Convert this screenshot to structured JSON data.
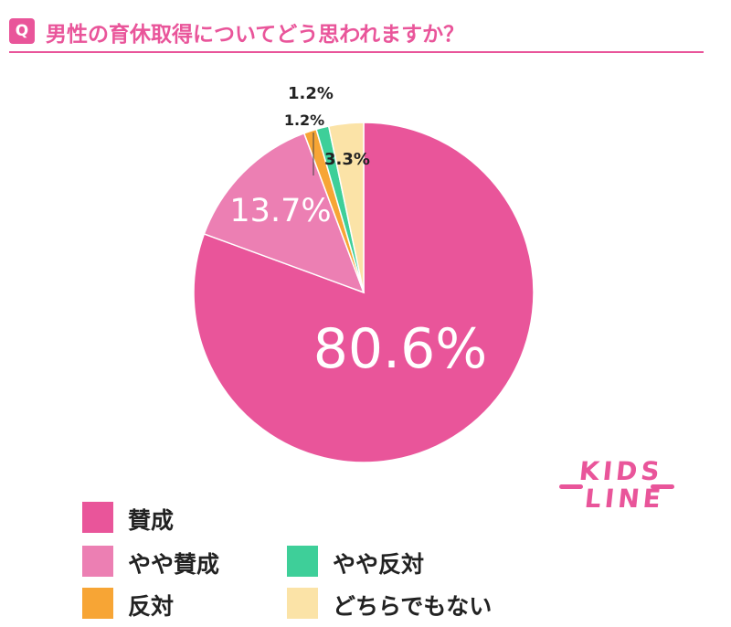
{
  "question": {
    "badge": "Q",
    "title": "男性の育休取得についてどう思われますか？"
  },
  "chart_data": {
    "type": "pie",
    "start": "12 o'clock",
    "direction": "clockwise",
    "slices": [
      {
        "label": "賛成",
        "value": 80.6,
        "display": "80.6%",
        "color": "#e9559a"
      },
      {
        "label": "やや賛成",
        "value": 13.7,
        "display": "13.7%",
        "color": "#ec7fb3"
      },
      {
        "label": "反対",
        "value": 1.2,
        "display": "1.2%",
        "color": "#f7a535"
      },
      {
        "label": "やや反対",
        "value": 1.2,
        "display": "1.2%",
        "color": "#3ecf99"
      },
      {
        "label": "どちらでもない",
        "value": 3.3,
        "display": "3.3%",
        "color": "#fbe3a7"
      }
    ],
    "legend_placement": "bottom"
  },
  "logo": {
    "line1": "KIDS",
    "line2": "LINE"
  },
  "legend": [
    {
      "label": "賛成",
      "color": "#e9559a"
    },
    {
      "label": "やや賛成",
      "color": "#ec7fb3"
    },
    {
      "label": "やや反対",
      "color": "#3ecf99"
    },
    {
      "label": "反対",
      "color": "#f7a535"
    },
    {
      "label": "どちらでもない",
      "color": "#fbe3a7"
    }
  ]
}
